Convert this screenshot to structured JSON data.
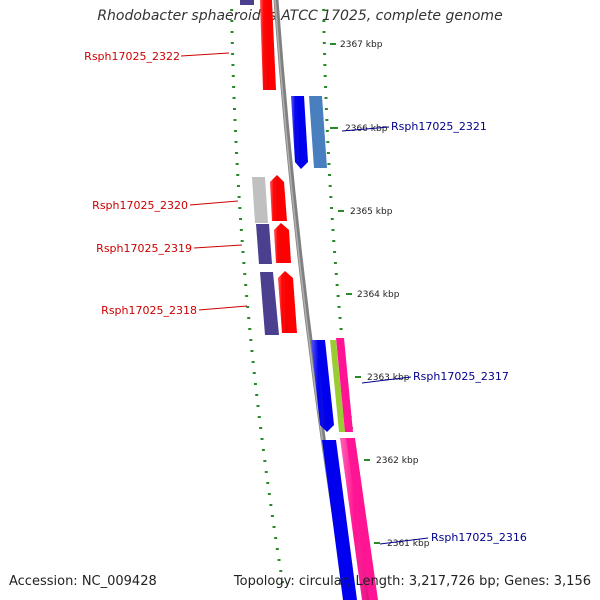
{
  "title": "Rhodobacter sphaeroides ATCC 17025, complete genome",
  "footer": {
    "accession": "Accession: NC_009428",
    "summary": "Topology: circular; Length: 3,217,726 bp; Genes: 3,156"
  },
  "colors": {
    "backbone": "#808080",
    "tick": "#2a8a2a",
    "label_reverse": "#cc0000",
    "label_forward": "#00008b",
    "blue": "#0000ee",
    "steelblue": "#4a7fbf",
    "slateblue": "#4b3f8f",
    "grey": "#c0c0c0",
    "red": "#ff0000",
    "pink": "#ff1493",
    "lime": "#9acd32"
  },
  "kbp_markers": [
    "2367 kbp",
    "2366 kbp",
    "2365 kbp",
    "2364 kbp",
    "2363 kbp",
    "2362 kbp",
    "2361 kbp"
  ],
  "gene_labels": {
    "reverse": [
      "Rsph17025_2322",
      "Rsph17025_2320",
      "Rsph17025_2319",
      "Rsph17025_2318"
    ],
    "forward": [
      "Rsph17025_2321",
      "Rsph17025_2317",
      "Rsph17025_2316"
    ]
  }
}
